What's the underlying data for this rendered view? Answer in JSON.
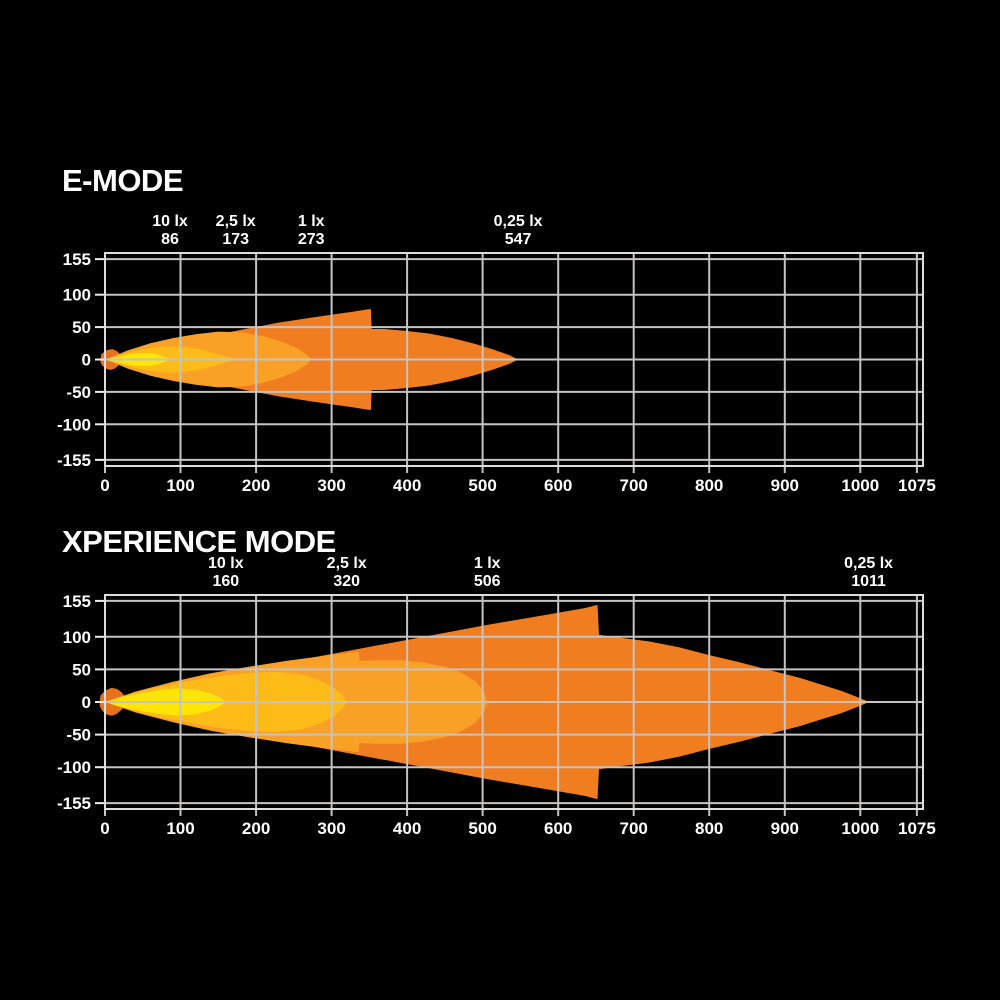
{
  "page": {
    "background": "#000000",
    "text_color": "#ffffff",
    "grid_color": "#c6c4c2",
    "frame_color": "#dedddb",
    "tick_color": "#ececea"
  },
  "chart_data": [
    {
      "type": "area",
      "title": "E-MODE",
      "xlim": [
        0,
        1075
      ],
      "ylim": [
        -155,
        155
      ],
      "x_ticks": [
        0,
        100,
        200,
        300,
        400,
        500,
        600,
        700,
        800,
        900,
        1000,
        1075
      ],
      "y_ticks": [
        155,
        100,
        50,
        0,
        -50,
        -100,
        -155
      ],
      "grid": true,
      "annotations": [
        {
          "lux": "10 lx",
          "distance": 86
        },
        {
          "lux": "2,5 lx",
          "distance": 173
        },
        {
          "lux": "1 lx",
          "distance": 273
        },
        {
          "lux": "0,25 lx",
          "distance": 547
        }
      ],
      "layers": [
        {
          "name": "origin-hotspot",
          "lux": "hotspot",
          "color": "#e8711b",
          "mirror": false,
          "points": [
            [
              -6,
              1
            ],
            [
              -5,
              8
            ],
            [
              -1,
              12
            ],
            [
              4,
              15
            ],
            [
              10,
              16
            ],
            [
              16,
              13
            ],
            [
              20,
              8
            ],
            [
              22,
              3
            ],
            [
              21,
              -3
            ],
            [
              18,
              -9
            ],
            [
              13,
              -14
            ],
            [
              7,
              -16
            ],
            [
              1,
              -14
            ],
            [
              -4,
              -9
            ],
            [
              -6,
              -4
            ]
          ]
        },
        {
          "name": "iso-0-25-lux",
          "lux": "0,25 lx",
          "color": "#f07d20",
          "mirror": true,
          "points": [
            [
              3,
              1
            ],
            [
              30,
              9
            ],
            [
              70,
              20
            ],
            [
              110,
              30
            ],
            [
              150,
              39
            ],
            [
              190,
              48
            ],
            [
              230,
              57
            ],
            [
              270,
              64
            ],
            [
              305,
              70
            ],
            [
              330,
              74
            ],
            [
              345,
              77
            ],
            [
              352,
              78
            ],
            [
              353,
              47
            ],
            [
              370,
              47
            ],
            [
              400,
              44
            ],
            [
              430,
              40
            ],
            [
              460,
              33
            ],
            [
              490,
              24
            ],
            [
              515,
              15
            ],
            [
              535,
              7
            ],
            [
              547,
              0
            ]
          ]
        },
        {
          "name": "iso-1-lux",
          "lux": "1 lx",
          "color": "#f9a126",
          "mirror": true,
          "points": [
            [
              3,
              1
            ],
            [
              30,
              14
            ],
            [
              60,
              25
            ],
            [
              90,
              33
            ],
            [
              120,
              39
            ],
            [
              150,
              43
            ],
            [
              180,
              42
            ],
            [
              210,
              36
            ],
            [
              235,
              27
            ],
            [
              255,
              17
            ],
            [
              268,
              7
            ],
            [
              273,
              0
            ]
          ]
        },
        {
          "name": "iso-2-5-lux",
          "lux": "2,5 lx",
          "color": "#fcbb17",
          "mirror": true,
          "points": [
            [
              2,
              1
            ],
            [
              25,
              9
            ],
            [
              50,
              16
            ],
            [
              75,
              20
            ],
            [
              100,
              20
            ],
            [
              125,
              16
            ],
            [
              148,
              9
            ],
            [
              165,
              3
            ],
            [
              173,
              0
            ]
          ]
        },
        {
          "name": "iso-10-lux",
          "lux": "10 lx",
          "color": "#ffe503",
          "mirror": true,
          "points": [
            [
              1,
              0
            ],
            [
              15,
              4
            ],
            [
              30,
              8
            ],
            [
              45,
              10
            ],
            [
              60,
              10
            ],
            [
              72,
              7
            ],
            [
              81,
              3
            ],
            [
              86,
              0
            ]
          ]
        }
      ]
    },
    {
      "type": "area",
      "title": "XPERIENCE MODE",
      "xlim": [
        0,
        1075
      ],
      "ylim": [
        -155,
        155
      ],
      "x_ticks": [
        0,
        100,
        200,
        300,
        400,
        500,
        600,
        700,
        800,
        900,
        1000,
        1075
      ],
      "y_ticks": [
        155,
        100,
        50,
        0,
        -50,
        -100,
        -155
      ],
      "grid": true,
      "annotations": [
        {
          "lux": "10 lx",
          "distance": 160
        },
        {
          "lux": "2,5 lx",
          "distance": 320
        },
        {
          "lux": "1 lx",
          "distance": 506
        },
        {
          "lux": "0,25 lx",
          "distance": 1011
        }
      ],
      "layers": [
        {
          "name": "origin-hotspot",
          "lux": "hotspot",
          "color": "#e8711b",
          "mirror": false,
          "points": [
            [
              -7,
              1
            ],
            [
              -6,
              10
            ],
            [
              -2,
              15
            ],
            [
              3,
              19
            ],
            [
              9,
              22
            ],
            [
              16,
              20
            ],
            [
              22,
              15
            ],
            [
              26,
              9
            ],
            [
              27,
              2
            ],
            [
              26,
              -5
            ],
            [
              22,
              -12
            ],
            [
              16,
              -18
            ],
            [
              9,
              -21
            ],
            [
              2,
              -19
            ],
            [
              -4,
              -13
            ],
            [
              -7,
              -6
            ]
          ]
        },
        {
          "name": "iso-0-25-lux",
          "lux": "0,25 lx",
          "color": "#f07d20",
          "mirror": true,
          "points": [
            [
              3,
              1
            ],
            [
              40,
              12
            ],
            [
              90,
              25
            ],
            [
              140,
              38
            ],
            [
              200,
              52
            ],
            [
              260,
              65
            ],
            [
              320,
              78
            ],
            [
              380,
              91
            ],
            [
              440,
              104
            ],
            [
              500,
              117
            ],
            [
              550,
              127
            ],
            [
              600,
              137
            ],
            [
              635,
              144
            ],
            [
              652,
              149
            ],
            [
              654,
              103
            ],
            [
              680,
              99
            ],
            [
              720,
              93
            ],
            [
              760,
              84
            ],
            [
              800,
              72
            ],
            [
              840,
              61
            ],
            [
              880,
              49
            ],
            [
              920,
              37
            ],
            [
              950,
              26
            ],
            [
              975,
              17
            ],
            [
              995,
              8
            ],
            [
              1008,
              2
            ],
            [
              1011,
              0
            ]
          ]
        },
        {
          "name": "iso-1-lux",
          "lux": "1 lx",
          "color": "#f9a126",
          "mirror": true,
          "points": [
            [
              3,
              1
            ],
            [
              40,
              16
            ],
            [
              90,
              31
            ],
            [
              140,
              44
            ],
            [
              190,
              54
            ],
            [
              240,
              63
            ],
            [
              285,
              70
            ],
            [
              320,
              75
            ],
            [
              336,
              77
            ],
            [
              337,
              63
            ],
            [
              360,
              64
            ],
            [
              390,
              64
            ],
            [
              420,
              61
            ],
            [
              450,
              54
            ],
            [
              472,
              45
            ],
            [
              490,
              32
            ],
            [
              501,
              18
            ],
            [
              506,
              0
            ]
          ]
        },
        {
          "name": "iso-2-5-lux",
          "lux": "2,5 lx",
          "color": "#fcbb17",
          "mirror": true,
          "points": [
            [
              2,
              1
            ],
            [
              35,
              13
            ],
            [
              75,
              24
            ],
            [
              115,
              33
            ],
            [
              155,
              40
            ],
            [
              195,
              45
            ],
            [
              230,
              46
            ],
            [
              260,
              42
            ],
            [
              285,
              33
            ],
            [
              303,
              22
            ],
            [
              315,
              10
            ],
            [
              320,
              0
            ]
          ]
        },
        {
          "name": "iso-10-lux",
          "lux": "10 lx",
          "color": "#ffe503",
          "mirror": true,
          "points": [
            [
              1,
              0
            ],
            [
              20,
              7
            ],
            [
              45,
              13
            ],
            [
              70,
              18
            ],
            [
              95,
              21
            ],
            [
              120,
              19
            ],
            [
              140,
              13
            ],
            [
              153,
              6
            ],
            [
              160,
              0
            ]
          ]
        }
      ]
    }
  ]
}
